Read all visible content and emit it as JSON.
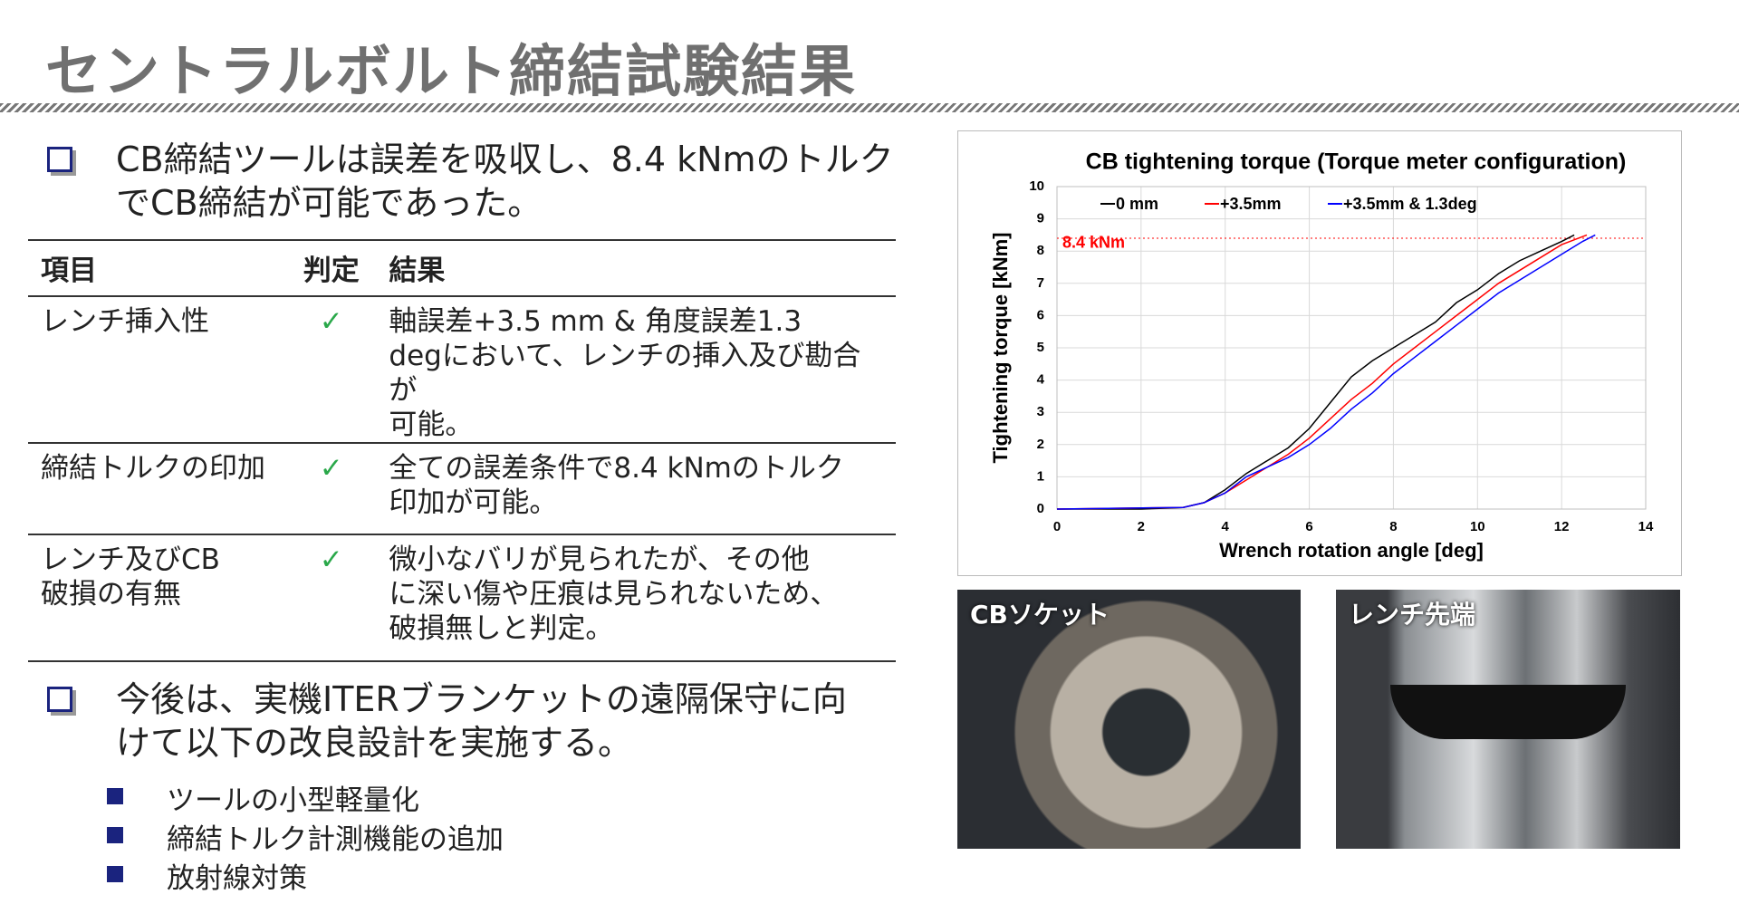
{
  "header": {
    "title": "セントラルボルト締結試験結果"
  },
  "bullet1": "CB締結ツールは誤差を吸収し、8.4 kNmのトルクでCB締結が可能であった。",
  "table": {
    "header": [
      "項目",
      "判定",
      "結果"
    ],
    "rows": [
      {
        "item": [
          "レンチ挿入性"
        ],
        "judge": "✓",
        "result": [
          "軸誤差+3.5 mm & 角度誤差1.3",
          "degにおいて、レンチの挿入及び勘合が",
          "可能。"
        ]
      },
      {
        "item": [
          "締結トルクの印加"
        ],
        "judge": "✓",
        "result": [
          "全ての誤差条件で8.4 kNmのトルク",
          "印加が可能。"
        ]
      },
      {
        "item": [
          "レンチ及びCB",
          "破損の有無"
        ],
        "judge": "✓",
        "result": [
          "微小なバリが見られたが、その他",
          "に深い傷や圧痕は見られないため、",
          "破損無しと判定。"
        ]
      }
    ]
  },
  "bullet2": [
    "今後は、実機ITERブランケットの遠隔保守に向",
    "けて以下の改良設計を実施する。"
  ],
  "subbullets": [
    "ツールの小型軽量化",
    "締結トルク計測機能の追加",
    "放射線対策"
  ],
  "photos": [
    "CBソケット",
    "レンチ先端"
  ],
  "chart_data": {
    "type": "line",
    "title": "CB tightening torque (Torque meter configuration)",
    "x_label": "Wrench rotation angle [deg]",
    "y_label": "Tightening torque [kNm]",
    "xlim": [
      0,
      14
    ],
    "xticks": [
      0,
      2,
      4,
      6,
      8,
      10,
      12,
      14
    ],
    "ylim": [
      0,
      10
    ],
    "yticks": [
      0,
      1,
      2,
      3,
      4,
      5,
      6,
      7,
      8,
      9,
      10
    ],
    "grid": true,
    "reference_line": {
      "value": 8.4,
      "label": "8.4 kNm",
      "color": "#ff0000"
    },
    "series": [
      {
        "name": "0 mm",
        "color": "#000000",
        "x": [
          0,
          2,
          3,
          3.5,
          4,
          4.5,
          5,
          5.5,
          6,
          6.5,
          7,
          7.5,
          8,
          8.5,
          9,
          9.5,
          10,
          10.5,
          11,
          11.5,
          12,
          12.3
        ],
        "values": [
          0,
          0,
          0.05,
          0.2,
          0.6,
          1.1,
          1.5,
          1.9,
          2.5,
          3.3,
          4.1,
          4.6,
          5.0,
          5.4,
          5.8,
          6.4,
          6.8,
          7.3,
          7.7,
          8.0,
          8.3,
          8.5
        ]
      },
      {
        "name": "+3.5mm",
        "color": "#ff0000",
        "x": [
          0,
          3,
          3.5,
          4,
          4.5,
          5,
          5.5,
          6,
          6.5,
          7,
          7.5,
          8,
          8.5,
          9,
          9.5,
          10,
          10.5,
          11,
          11.5,
          12,
          12.6
        ],
        "values": [
          0,
          0.05,
          0.2,
          0.5,
          0.9,
          1.3,
          1.7,
          2.2,
          2.8,
          3.4,
          3.9,
          4.5,
          5.0,
          5.5,
          6.0,
          6.5,
          7.0,
          7.4,
          7.8,
          8.2,
          8.5
        ]
      },
      {
        "name": "+3.5mm & 1.3deg",
        "color": "#0000ff",
        "x": [
          0,
          3,
          3.5,
          4,
          4.5,
          5,
          5.5,
          6,
          6.5,
          7,
          7.5,
          8,
          8.5,
          9,
          9.5,
          10,
          10.5,
          11,
          11.5,
          12,
          12.5,
          12.8
        ],
        "values": [
          0,
          0.05,
          0.2,
          0.5,
          1.0,
          1.3,
          1.6,
          2.0,
          2.5,
          3.1,
          3.6,
          4.2,
          4.7,
          5.2,
          5.7,
          6.2,
          6.7,
          7.1,
          7.5,
          7.9,
          8.3,
          8.5
        ]
      }
    ]
  }
}
